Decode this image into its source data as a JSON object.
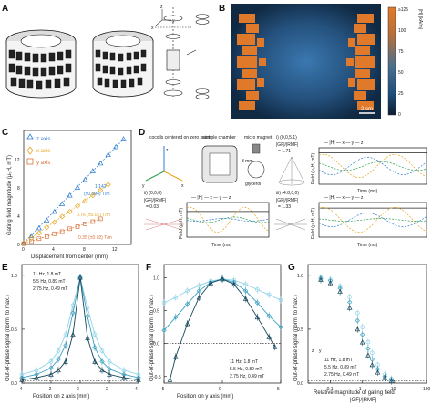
{
  "panel_labels": [
    "A",
    "B",
    "C",
    "D",
    "E",
    "F",
    "G"
  ],
  "panelB": {
    "colorbar_label": "|H| (kA/m)",
    "colorbar_ticks": [
      "≥125",
      "100",
      "75",
      "50",
      "25",
      "0"
    ],
    "scalebar": "2 cm",
    "colors": {
      "magnet": "#e07a2a",
      "bg_outer": "#1c3a5a",
      "bg_inner": "#2f5f90"
    }
  },
  "panelC": {
    "ylabel": "Gating field magnitude (μ₀H, mT)",
    "xlabel": "Displacement from center (mm)",
    "legend": [
      "z axis",
      "x axis",
      "y axis"
    ],
    "annotations": [
      {
        "text": "1.142",
        "color": "#2e7dd2"
      },
      {
        "text": "(±0.004) T/m",
        "color": "#2e7dd2"
      },
      {
        "text": "0.76 (±0.01) T/m",
        "color": "#e9a31b"
      },
      {
        "text": "0.35 (±0.02) T/m",
        "color": "#d9733a"
      }
    ],
    "xticks": [
      "0",
      "4",
      "8",
      "12"
    ],
    "yticks": [
      "0",
      "4",
      "8",
      "12"
    ]
  },
  "panelD": {
    "labels": {
      "cocoils": "cocoils centered on zero point",
      "chamber": "sample chamber",
      "micro": "micro magnet",
      "mm3": "3 mm",
      "glycerol": "glycerol",
      "i": "i) (0,0,5.1)",
      "i_ratio_top": "|GF|/|RMF|",
      "i_ratio": "= 1.71",
      "ii": "ii) (0,0,0)",
      "ii_ratio_top": "|GF|/|RMF|",
      "ii_ratio": "= 0.03",
      "iii": "iii) (4.8,0,0)",
      "iii_ratio_top": "|GF|/|RMF|",
      "iii_ratio": "= 1.33",
      "legend": "— |H|  — x  — y  — z",
      "time": "Time (ms)",
      "field": "Field (μ₀H, mT)"
    },
    "axes_letters": [
      "x",
      "y",
      "z"
    ]
  },
  "chart_data": [
    {
      "type": "scatter",
      "panel": "C",
      "xlabel": "Displacement from center (mm)",
      "ylabel": "Gating field magnitude (μ₀H, mT)",
      "xlim": [
        0,
        14
      ],
      "ylim": [
        0,
        16
      ],
      "series": [
        {
          "name": "z axis",
          "color": "#2e7dd2",
          "x": [
            0,
            1,
            2,
            3,
            4,
            5,
            6,
            7,
            8,
            9,
            10,
            11,
            12,
            13
          ],
          "y": [
            0.2,
            1.2,
            2.3,
            3.4,
            4.6,
            5.7,
            6.9,
            8.0,
            9.1,
            10.3,
            11.4,
            12.6,
            13.7,
            14.8
          ]
        },
        {
          "name": "x axis",
          "color": "#e9a31b",
          "x": [
            0,
            1,
            2,
            3,
            4,
            5,
            6,
            7,
            8,
            9,
            10,
            11
          ],
          "y": [
            0.2,
            0.9,
            1.6,
            2.4,
            3.1,
            3.9,
            4.6,
            5.4,
            6.1,
            6.9,
            7.6,
            8.4
          ]
        },
        {
          "name": "y axis",
          "color": "#d9733a",
          "x": [
            0,
            1,
            2,
            3,
            4,
            5,
            6,
            7,
            8,
            9,
            10
          ],
          "y": [
            0.1,
            0.4,
            0.8,
            1.1,
            1.5,
            1.8,
            2.2,
            2.5,
            2.9,
            3.2,
            3.6
          ]
        }
      ]
    },
    {
      "type": "line",
      "panel": "E",
      "xlabel": "Position on z axis (mm)",
      "ylabel": "Out-of-phase signal (norm. to max.)",
      "xlim": [
        -4,
        4
      ],
      "ylim": [
        0,
        1.1
      ],
      "xticks": [
        "-4",
        "-2",
        "0",
        "2",
        "4"
      ],
      "yticks": [
        "0.0",
        "0.5",
        "1.0"
      ],
      "series": [
        {
          "name": "11 Hz, 1.8 mT",
          "color": "#8fd3e8",
          "x": [
            -4,
            -3,
            -2,
            -1.5,
            -1,
            -0.5,
            0,
            0.5,
            1,
            1.5,
            2,
            3,
            4
          ],
          "y": [
            0.08,
            0.12,
            0.2,
            0.3,
            0.45,
            0.72,
            0.98,
            0.7,
            0.45,
            0.3,
            0.2,
            0.12,
            0.08
          ]
        },
        {
          "name": "5.5 Hz, 0.89 mT",
          "color": "#3b9fbf",
          "x": [
            -4,
            -3,
            -2,
            -1.5,
            -1,
            -0.5,
            0,
            0.5,
            1,
            1.5,
            2,
            3,
            4
          ],
          "y": [
            0.05,
            0.08,
            0.14,
            0.22,
            0.35,
            0.65,
            0.98,
            0.62,
            0.33,
            0.2,
            0.13,
            0.08,
            0.05
          ]
        },
        {
          "name": "2.75 Hz, 0.49 mT",
          "color": "#15455a",
          "x": [
            -4,
            -3,
            -2,
            -1.5,
            -1,
            -0.5,
            0,
            0.5,
            1,
            1.5,
            2,
            3,
            4
          ],
          "y": [
            0.03,
            0.05,
            0.08,
            0.12,
            0.2,
            0.45,
            0.98,
            0.42,
            0.2,
            0.12,
            0.08,
            0.05,
            0.03
          ]
        }
      ]
    },
    {
      "type": "line",
      "panel": "F",
      "xlabel": "Position on y axis (mm)",
      "ylabel": "Out-of-phase signal (norm. to max.)",
      "xlim": [
        -5,
        5
      ],
      "ylim": [
        -0.6,
        1.2
      ],
      "xticks": [
        "-5",
        "0",
        "5"
      ],
      "yticks": [
        "-0.5",
        "0.0",
        "0.5",
        "1.0"
      ],
      "series": [
        {
          "name": "11 Hz, 1.8 mT",
          "color": "#8fd3e8",
          "x": [
            -5,
            -4,
            -3,
            -2,
            -1,
            0,
            1,
            2,
            3,
            4,
            5
          ],
          "y": [
            0.62,
            0.7,
            0.8,
            0.88,
            0.95,
            0.98,
            0.96,
            0.9,
            0.82,
            0.74,
            0.66
          ]
        },
        {
          "name": "5.5 Hz, 0.89 mT",
          "color": "#3b9fbf",
          "x": [
            -5,
            -4,
            -3,
            -2,
            -1,
            0,
            1,
            2,
            3,
            4,
            5
          ],
          "y": [
            0.2,
            0.4,
            0.6,
            0.8,
            0.93,
            0.98,
            0.93,
            0.8,
            0.62,
            0.42,
            0.25
          ]
        },
        {
          "name": "2.75 Hz, 0.49 mT",
          "color": "#15455a",
          "x": [
            -4.5,
            -4,
            -3,
            -2,
            -1,
            0,
            1,
            2,
            3,
            4,
            4.5
          ],
          "y": [
            -0.55,
            -0.2,
            0.3,
            0.7,
            0.92,
            0.98,
            0.9,
            0.68,
            0.4,
            0.1,
            -0.05
          ]
        }
      ]
    },
    {
      "type": "scatter",
      "panel": "G",
      "xlabel": "Relative magnitude of gating field",
      "xlabel2": "|GF|/|RMF|",
      "ylabel": "Out-of-phase signal (norm. to max.)",
      "xscale": "log",
      "xlim": [
        0.02,
        100
      ],
      "ylim": [
        0,
        1.1
      ],
      "xticks": [
        "0.1",
        "1",
        "10",
        "100"
      ],
      "yticks": [
        "0.0",
        "0.5",
        "1.0"
      ],
      "legend_axes": [
        "z",
        "y"
      ],
      "series": [
        {
          "name": "11 Hz, 1.8 mT",
          "color": "#8fd3e8",
          "x": [
            0.05,
            0.1,
            0.2,
            0.4,
            0.7,
            1,
            1.5,
            2,
            3,
            5,
            8
          ],
          "y": [
            0.98,
            0.96,
            0.9,
            0.8,
            0.65,
            0.52,
            0.38,
            0.28,
            0.17,
            0.08,
            0.04
          ]
        },
        {
          "name": "5.5 Hz, 0.89 mT",
          "color": "#3b9fbf",
          "x": [
            0.05,
            0.1,
            0.2,
            0.4,
            0.7,
            1,
            1.5,
            2,
            3,
            5,
            8
          ],
          "y": [
            0.97,
            0.95,
            0.88,
            0.75,
            0.58,
            0.45,
            0.32,
            0.22,
            0.13,
            0.06,
            0.03
          ]
        },
        {
          "name": "2.75 Hz, 0.49 mT",
          "color": "#15455a",
          "x": [
            0.05,
            0.1,
            0.2,
            0.4,
            0.7,
            1,
            1.5,
            2,
            3,
            5,
            8
          ],
          "y": [
            0.96,
            0.93,
            0.85,
            0.7,
            0.5,
            0.38,
            0.26,
            0.17,
            0.1,
            0.05,
            0.02
          ]
        }
      ]
    }
  ]
}
